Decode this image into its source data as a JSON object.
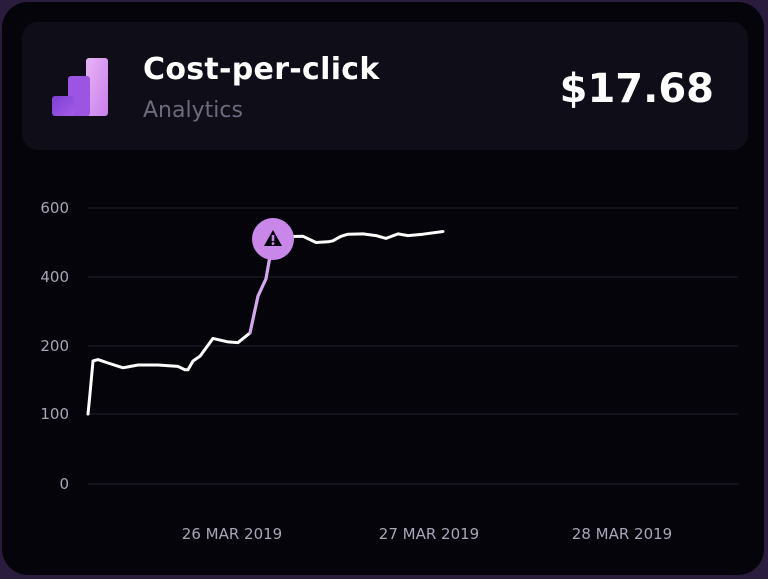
{
  "card": {
    "title": "Cost-per-click",
    "subtitle": "Analytics",
    "value": "$17.68",
    "logo_icon": "bar-chart-logo-icon"
  },
  "colors": {
    "background": "#05040b",
    "panel": "#0f0d18",
    "line": "#ffffff",
    "highlight": "#d6a6f0",
    "marker": "#c987ea",
    "grid": "#24212f"
  },
  "chart_data": {
    "type": "line",
    "title": "",
    "xlabel": "",
    "ylabel": "",
    "x_ticks": [
      "26 MAR 2019",
      "27 MAR 2019",
      "28 MAR 2019"
    ],
    "y_ticks": [
      0,
      100,
      200,
      400,
      600
    ],
    "ylim": [
      0,
      600
    ],
    "grid": true,
    "points": [
      [
        0.0,
        100
      ],
      [
        0.02,
        130
      ],
      [
        0.05,
        178
      ],
      [
        0.1,
        180
      ],
      [
        0.2,
        175
      ],
      [
        0.35,
        168
      ],
      [
        0.5,
        172
      ],
      [
        0.7,
        172
      ],
      [
        0.9,
        170
      ],
      [
        0.97,
        165
      ],
      [
        1.0,
        165
      ],
      [
        1.05,
        178
      ],
      [
        1.12,
        185
      ],
      [
        1.25,
        222
      ],
      [
        1.4,
        212
      ],
      [
        1.5,
        210
      ],
      [
        1.62,
        238
      ],
      [
        1.7,
        345
      ],
      [
        1.78,
        395
      ],
      [
        1.85,
        510
      ],
      [
        2.0,
        517
      ],
      [
        2.15,
        518
      ],
      [
        2.28,
        500
      ],
      [
        2.4,
        502
      ],
      [
        2.45,
        505
      ],
      [
        2.48,
        510
      ],
      [
        2.53,
        518
      ],
      [
        2.6,
        524
      ],
      [
        2.75,
        525
      ],
      [
        2.88,
        520
      ],
      [
        2.98,
        512
      ],
      [
        3.1,
        525
      ],
      [
        3.2,
        520
      ],
      [
        3.35,
        524
      ],
      [
        3.55,
        532
      ]
    ],
    "annotation": {
      "type": "warning",
      "x": 1.85,
      "y": 510,
      "highlighted_segment": [
        1.62,
        1.85
      ]
    }
  }
}
